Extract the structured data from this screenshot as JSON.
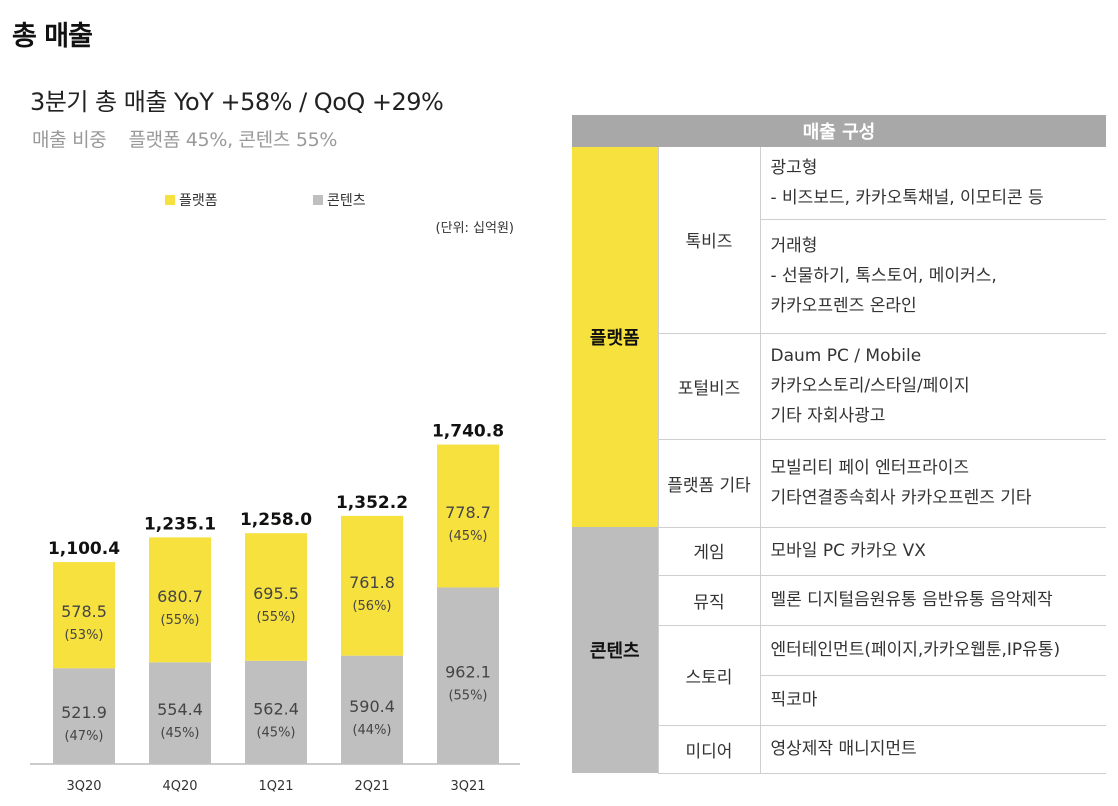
{
  "page": {
    "title": "총 매출",
    "subtitle": "3분기 총 매출  YoY +58% / QoQ +29%",
    "share_label": "매출 비중",
    "share_value": "플랫폼 45%, 콘텐츠 55%"
  },
  "chart_data": {
    "type": "bar",
    "stacked": true,
    "unit_label": "(단위: 십억원)",
    "categories": [
      "3Q20",
      "4Q20",
      "1Q21",
      "2Q21",
      "3Q21"
    ],
    "totals": [
      "1,100.4",
      "1,235.1",
      "1,258.0",
      "1,352.2",
      "1,740.8"
    ],
    "total_values": [
      1100.4,
      1235.1,
      1258.0,
      1352.2,
      1740.8
    ],
    "series": [
      {
        "name": "콘텐츠",
        "color": "#bfbfbf",
        "values": [
          521.9,
          554.4,
          562.4,
          590.4,
          962.1
        ],
        "labels": [
          "521.9",
          "554.4",
          "562.4",
          "590.4",
          "962.1"
        ],
        "pct": [
          "(47%)",
          "(45%)",
          "(45%)",
          "(44%)",
          "(55%)"
        ]
      },
      {
        "name": "플랫폼",
        "color": "#f7e13e",
        "values": [
          578.5,
          680.7,
          695.5,
          761.8,
          778.7
        ],
        "labels": [
          "578.5",
          "680.7",
          "695.5",
          "761.8",
          "778.7"
        ],
        "pct": [
          "(53%)",
          "(55%)",
          "(55%)",
          "(56%)",
          "(45%)"
        ]
      }
    ],
    "legend": [
      {
        "name": "플랫폼",
        "color": "#f7e13e"
      },
      {
        "name": "콘텐츠",
        "color": "#bfbfbf"
      }
    ],
    "legend_position": "top"
  },
  "table": {
    "header": "매출 구성",
    "platform": {
      "category": "플랫폼",
      "talkbiz": {
        "label": "톡비즈",
        "ad_title": "광고형",
        "ad_detail": "- 비즈보드, 카카오톡채널, 이모티콘 등",
        "trade_title": "거래형",
        "trade_detail1": "- 선물하기, 톡스토어, 메이커스,",
        "trade_detail2": "카카오프렌즈 온라인"
      },
      "portal": {
        "label": "포털비즈",
        "line1": "Daum PC / Mobile",
        "line2": "카카오스토리/스타일/페이지",
        "line3": "기타 자회사광고"
      },
      "other": {
        "label": "플랫폼 기타",
        "line1": "모빌리티   페이   엔터프라이즈",
        "line2": "기타연결종속회사   카카오프렌즈 기타"
      }
    },
    "content": {
      "category": "콘텐츠",
      "game": {
        "label": "게임",
        "detail": "모바일    PC    카카오 VX"
      },
      "music": {
        "label": "뮤직",
        "detail": "멜론  디지털음원유통  음반유통  음악제작"
      },
      "story": {
        "label": "스토리",
        "detail1": "엔터테인먼트(페이지,카카오웹툰,IP유통)",
        "detail2": "픽코마"
      },
      "media": {
        "label": "미디어",
        "detail": "영상제작    매니지먼트"
      }
    }
  }
}
